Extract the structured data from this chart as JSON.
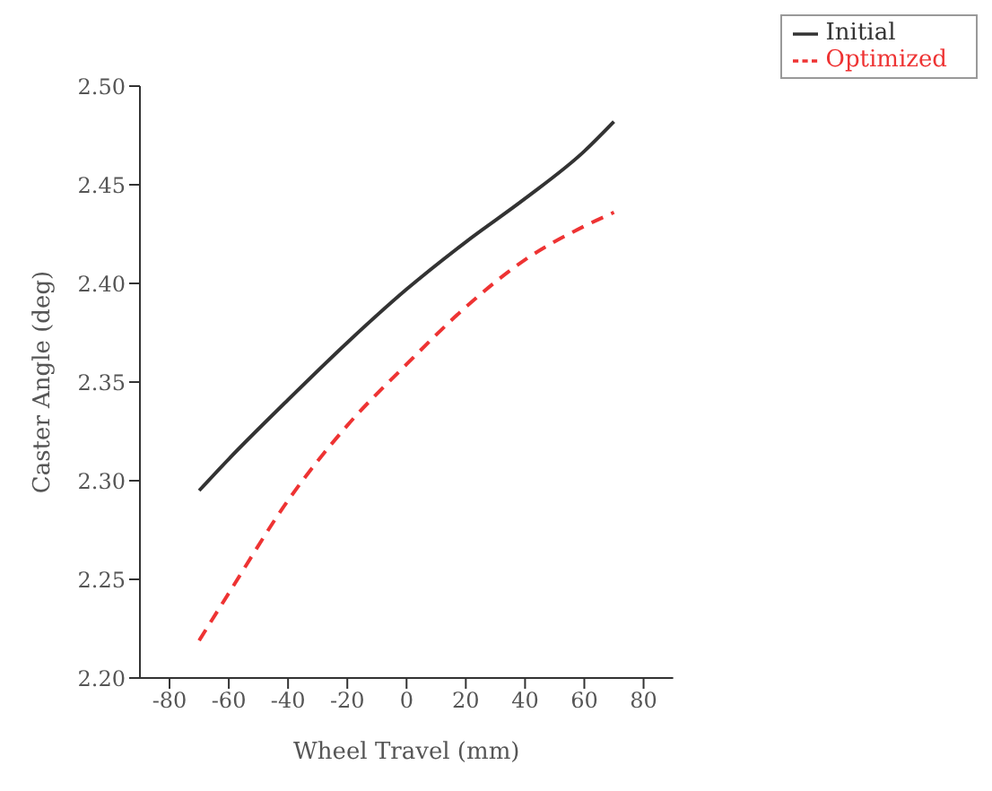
{
  "chart_data": {
    "type": "line",
    "xlabel": "Wheel Travel (mm)",
    "ylabel": "Caster Angle (deg)",
    "x": [
      -70,
      -60,
      -40,
      -20,
      0,
      20,
      40,
      60,
      70
    ],
    "series": [
      {
        "name": "Initial",
        "color": "#333333",
        "line_style": "solid",
        "values": [
          2.295,
          2.311,
          2.341,
          2.37,
          2.397,
          2.421,
          2.443,
          2.467,
          2.482
        ]
      },
      {
        "name": "Optimized",
        "color": "#ee3333",
        "line_style": "dashed",
        "values": [
          2.219,
          2.243,
          2.29,
          2.328,
          2.359,
          2.388,
          2.412,
          2.429,
          2.436
        ]
      }
    ],
    "xlim": [
      -90,
      90
    ],
    "xticks": [
      -80,
      -60,
      -40,
      -20,
      0,
      20,
      40,
      60,
      80
    ],
    "ylim": [
      2.2,
      2.5
    ],
    "yticks": [
      {
        "value": 2.2,
        "label": "2.20"
      },
      {
        "value": 2.25,
        "label": "2.25"
      },
      {
        "value": 2.3,
        "label": "2.30"
      },
      {
        "value": 2.35,
        "label": "2.35"
      },
      {
        "value": 2.4,
        "label": "2.40"
      },
      {
        "value": 2.45,
        "label": "2.45"
      },
      {
        "value": 2.5,
        "label": "2.50"
      }
    ],
    "grid": false,
    "legend": "top right",
    "marker": "none"
  }
}
